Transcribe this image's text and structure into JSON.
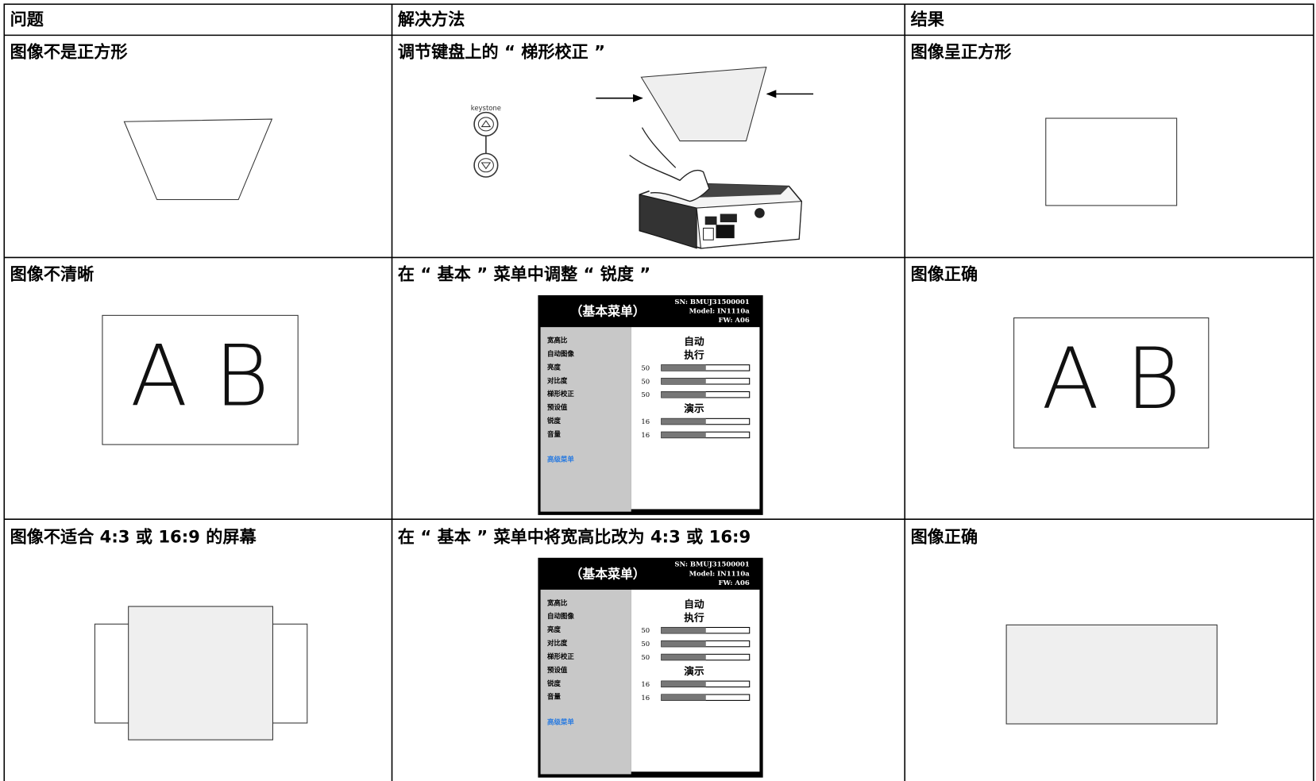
{
  "table": {
    "header": [
      "问题",
      "解决方法",
      "结果"
    ],
    "rows": [
      [
        "图像不是正方形",
        "调节键盘上的 “ 梯形校正 ”",
        "图像呈正方形"
      ],
      [
        "图像不清晰",
        "在 “ 基本 ” 菜单中调整 “ 锐度 ”",
        "图像正确"
      ],
      [
        "图像不适合 4:3 或 16:9 的屏幕",
        "在 “ 基本 ” 菜单中将宽高比改为 4:3 或 16:9",
        "图像正确"
      ]
    ]
  },
  "keypad_label": "keystone",
  "sample_text": "A B",
  "osd_menu": {
    "title": "（基本菜单）",
    "info": [
      "SN: BMUJ31500001",
      "Model: IN1110a",
      "FW: A06"
    ],
    "items": [
      {
        "label": "宽高比",
        "value": "自动"
      },
      {
        "label": "自动图像",
        "value": "执行"
      },
      {
        "label": "亮度",
        "value": 50
      },
      {
        "label": "对比度",
        "value": 50
      },
      {
        "label": "梯形校正",
        "value": 50
      },
      {
        "label": "预设值",
        "value": "演示"
      },
      {
        "label": "锐度",
        "value": 16
      },
      {
        "label": "音量",
        "value": 16
      }
    ],
    "link": "高级菜单"
  }
}
